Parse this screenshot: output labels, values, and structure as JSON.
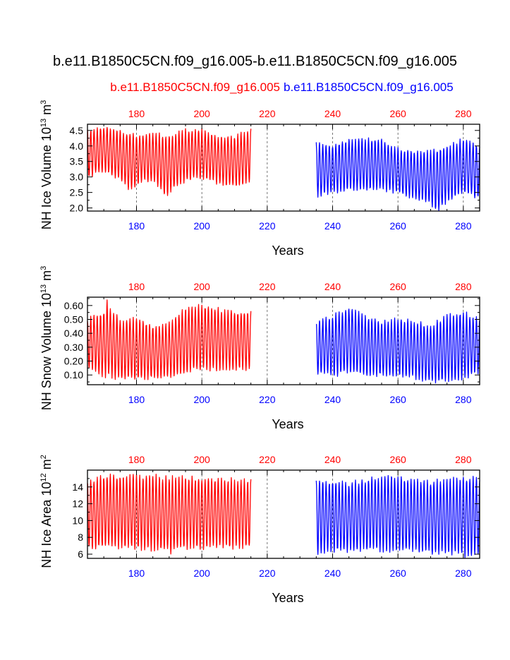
{
  "title": "b.e11.B1850C5CN.f09_g16.005-b.e11.B1850C5CN.f09_g16.005",
  "subtitle_left": "b.e11.B1850C5CN.f09_g16.005",
  "subtitle_right": "b.e11.B1850C5CN.f09_g16.005",
  "colors": {
    "case1": "#ff0000",
    "case2": "#0000ff",
    "axis": "#000000"
  },
  "chart_data": [
    {
      "type": "line",
      "ylabel": "NH Ice Volume 10",
      "ylabel_exp": "13",
      "ylabel_unit": " m",
      "ylabel_unit_exp": "3",
      "xlabel": "Years",
      "xlim": [
        165,
        285
      ],
      "ylim": [
        1.9,
        4.7
      ],
      "yticks": [
        2.0,
        2.5,
        3.0,
        3.5,
        4.0,
        4.5
      ],
      "ytick_labels": [
        "2.0",
        "2.5",
        "3.0",
        "3.5",
        "4.0",
        "4.5"
      ],
      "xticks": [
        180,
        200,
        220,
        240,
        260,
        280
      ],
      "xtick_labels_top": [
        "180",
        "200",
        "220",
        "240",
        "260",
        "280"
      ],
      "xtick_labels_bottom": [
        "180",
        "200",
        "220",
        "240",
        "260",
        "280"
      ],
      "series": [
        {
          "name": "b.e11.B1850C5CN.f09_g16.005",
          "color": "#ff0000",
          "x_start": 165,
          "x_end": 215,
          "max_knots": [
            [
              165,
              4.5
            ],
            [
              170,
              4.6
            ],
            [
              175,
              4.5
            ],
            [
              180,
              4.3
            ],
            [
              185,
              4.4
            ],
            [
              190,
              4.3
            ],
            [
              195,
              4.5
            ],
            [
              200,
              4.5
            ],
            [
              205,
              4.3
            ],
            [
              210,
              4.3
            ],
            [
              215,
              4.5
            ]
          ],
          "min_knots": [
            [
              165,
              3.0
            ],
            [
              170,
              3.2
            ],
            [
              175,
              2.9
            ],
            [
              178,
              2.6
            ],
            [
              182,
              2.9
            ],
            [
              186,
              2.8
            ],
            [
              189,
              2.4
            ],
            [
              193,
              2.8
            ],
            [
              198,
              3.0
            ],
            [
              203,
              2.9
            ],
            [
              207,
              2.7
            ],
            [
              211,
              2.7
            ],
            [
              215,
              2.9
            ]
          ]
        },
        {
          "name": "b.e11.B1850C5CN.f09_g16.005",
          "color": "#0000ff",
          "x_start": 235,
          "x_end": 285,
          "max_knots": [
            [
              235,
              4.1
            ],
            [
              240,
              4.0
            ],
            [
              245,
              4.2
            ],
            [
              250,
              4.2
            ],
            [
              255,
              4.2
            ],
            [
              260,
              3.9
            ],
            [
              265,
              3.8
            ],
            [
              270,
              3.8
            ],
            [
              275,
              4.0
            ],
            [
              280,
              4.2
            ],
            [
              285,
              4.0
            ]
          ],
          "min_knots": [
            [
              235,
              2.4
            ],
            [
              240,
              2.5
            ],
            [
              245,
              2.6
            ],
            [
              250,
              2.6
            ],
            [
              255,
              2.6
            ],
            [
              260,
              2.5
            ],
            [
              265,
              2.3
            ],
            [
              269,
              2.2
            ],
            [
              272,
              1.9
            ],
            [
              275,
              2.2
            ],
            [
              280,
              2.5
            ],
            [
              285,
              2.3
            ]
          ]
        }
      ]
    },
    {
      "type": "line",
      "ylabel": "NH Snow Volume 10",
      "ylabel_exp": "13",
      "ylabel_unit": " m",
      "ylabel_unit_exp": "3",
      "xlabel": "Years",
      "xlim": [
        165,
        285
      ],
      "ylim": [
        0.03,
        0.66
      ],
      "yticks": [
        0.1,
        0.2,
        0.3,
        0.4,
        0.5,
        0.6
      ],
      "ytick_labels": [
        "0.10",
        "0.20",
        "0.30",
        "0.40",
        "0.50",
        "0.60"
      ],
      "xticks": [
        180,
        200,
        220,
        240,
        260,
        280
      ],
      "xtick_labels_top": [
        "180",
        "200",
        "220",
        "240",
        "260",
        "280"
      ],
      "xtick_labels_bottom": [
        "180",
        "200",
        "220",
        "240",
        "260",
        "280"
      ],
      "series": [
        {
          "name": "b.e11.B1850C5CN.f09_g16.005",
          "color": "#ff0000",
          "x_start": 165,
          "x_end": 215,
          "max_knots": [
            [
              165,
              0.5
            ],
            [
              170,
              0.55
            ],
            [
              171,
              0.62
            ],
            [
              175,
              0.5
            ],
            [
              180,
              0.5
            ],
            [
              185,
              0.45
            ],
            [
              190,
              0.47
            ],
            [
              195,
              0.58
            ],
            [
              200,
              0.6
            ],
            [
              205,
              0.57
            ],
            [
              210,
              0.55
            ],
            [
              215,
              0.55
            ]
          ],
          "min_knots": [
            [
              165,
              0.15
            ],
            [
              170,
              0.1
            ],
            [
              175,
              0.08
            ],
            [
              180,
              0.08
            ],
            [
              185,
              0.08
            ],
            [
              190,
              0.09
            ],
            [
              195,
              0.12
            ],
            [
              200,
              0.15
            ],
            [
              205,
              0.14
            ],
            [
              210,
              0.14
            ],
            [
              215,
              0.15
            ]
          ]
        },
        {
          "name": "b.e11.B1850C5CN.f09_g16.005",
          "color": "#0000ff",
          "x_start": 235,
          "x_end": 285,
          "max_knots": [
            [
              235,
              0.48
            ],
            [
              240,
              0.52
            ],
            [
              245,
              0.58
            ],
            [
              250,
              0.52
            ],
            [
              255,
              0.48
            ],
            [
              260,
              0.5
            ],
            [
              265,
              0.48
            ],
            [
              270,
              0.45
            ],
            [
              275,
              0.52
            ],
            [
              280,
              0.55
            ],
            [
              285,
              0.5
            ]
          ],
          "min_knots": [
            [
              235,
              0.12
            ],
            [
              240,
              0.1
            ],
            [
              245,
              0.12
            ],
            [
              250,
              0.1
            ],
            [
              255,
              0.1
            ],
            [
              260,
              0.1
            ],
            [
              265,
              0.08
            ],
            [
              270,
              0.05
            ],
            [
              275,
              0.06
            ],
            [
              280,
              0.08
            ],
            [
              285,
              0.12
            ]
          ]
        }
      ]
    },
    {
      "type": "line",
      "ylabel": "NH Ice Area 10",
      "ylabel_exp": "12",
      "ylabel_unit": " m",
      "ylabel_unit_exp": "2",
      "xlabel": "Years",
      "xlim": [
        165,
        285
      ],
      "ylim": [
        5.5,
        16
      ],
      "yticks": [
        6,
        8,
        10,
        12,
        14
      ],
      "ytick_labels": [
        "6",
        "8",
        "10",
        "12",
        "14"
      ],
      "xticks": [
        180,
        200,
        220,
        240,
        260,
        280
      ],
      "xtick_labels_top": [
        "180",
        "200",
        "220",
        "240",
        "260",
        "280"
      ],
      "xtick_labels_bottom": [
        "180",
        "200",
        "220",
        "240",
        "260",
        "280"
      ],
      "series": [
        {
          "name": "b.e11.B1850C5CN.f09_g16.005",
          "color": "#ff0000",
          "x_start": 165,
          "x_end": 215,
          "max_knots": [
            [
              165,
              14.5
            ],
            [
              170,
              15.2
            ],
            [
              175,
              15.3
            ],
            [
              180,
              15.2
            ],
            [
              185,
              15.3
            ],
            [
              190,
              15.0
            ],
            [
              195,
              15.1
            ],
            [
              200,
              15.0
            ],
            [
              205,
              14.9
            ],
            [
              210,
              14.8
            ],
            [
              215,
              14.8
            ]
          ],
          "min_knots": [
            [
              165,
              6.8
            ],
            [
              170,
              6.9
            ],
            [
              175,
              6.8
            ],
            [
              180,
              6.8
            ],
            [
              185,
              6.6
            ],
            [
              190,
              6.3
            ],
            [
              195,
              6.8
            ],
            [
              200,
              6.8
            ],
            [
              205,
              6.9
            ],
            [
              210,
              6.8
            ],
            [
              215,
              7.0
            ]
          ]
        },
        {
          "name": "b.e11.B1850C5CN.f09_g16.005",
          "color": "#0000ff",
          "x_start": 235,
          "x_end": 285,
          "max_knots": [
            [
              235,
              14.8
            ],
            [
              240,
              14.6
            ],
            [
              245,
              14.3
            ],
            [
              250,
              14.8
            ],
            [
              255,
              15.2
            ],
            [
              258,
              15.4
            ],
            [
              260,
              15.0
            ],
            [
              265,
              14.8
            ],
            [
              270,
              14.5
            ],
            [
              275,
              14.8
            ],
            [
              280,
              15.0
            ],
            [
              285,
              15.1
            ]
          ],
          "min_knots": [
            [
              235,
              6.2
            ],
            [
              240,
              6.5
            ],
            [
              245,
              6.5
            ],
            [
              250,
              6.6
            ],
            [
              255,
              6.5
            ],
            [
              260,
              6.4
            ],
            [
              265,
              6.4
            ],
            [
              270,
              6.2
            ],
            [
              275,
              6.1
            ],
            [
              280,
              6.0
            ],
            [
              283,
              5.7
            ],
            [
              285,
              6.2
            ]
          ]
        }
      ]
    }
  ]
}
